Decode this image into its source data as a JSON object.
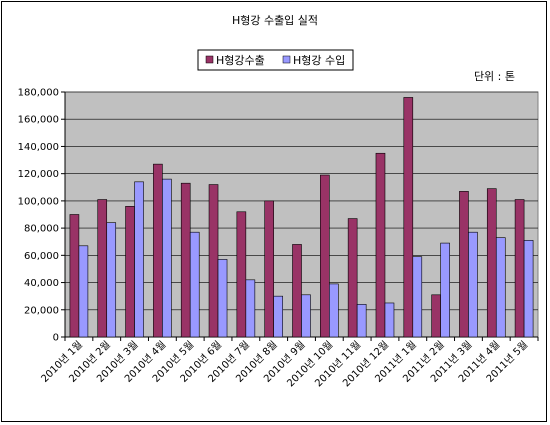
{
  "chart_data": {
    "type": "bar",
    "title": "H형강 수출입 실적",
    "unit_label": "단위 : 톤",
    "categories": [
      "2010년 1월",
      "2010년 2월",
      "2010년 3월",
      "2010년 4월",
      "2010년 5월",
      "2010년 6월",
      "2010년 7월",
      "2010년 8월",
      "2010년 9월",
      "2010년 10월",
      "2010년 11월",
      "2010년 12월",
      "2011년 1월",
      "2011년 2월",
      "2011년 3월",
      "2011년 4월",
      "2011년 5월"
    ],
    "series": [
      {
        "name": "H형강수출",
        "color": "#993366",
        "values": [
          90000,
          101000,
          96000,
          127000,
          113000,
          112000,
          92000,
          100000,
          68000,
          119000,
          87000,
          135000,
          176000,
          31000,
          107000,
          109000,
          101000
        ]
      },
      {
        "name": "H형강 수입",
        "color": "#9999ff",
        "values": [
          67000,
          84000,
          114000,
          116000,
          77000,
          57000,
          42000,
          30000,
          31000,
          39000,
          24000,
          25000,
          59000,
          69000,
          77000,
          73000,
          71000
        ]
      }
    ],
    "y_ticks": [
      "0",
      "20,000",
      "40,000",
      "60,000",
      "80,000",
      "100,000",
      "120,000",
      "140,000",
      "160,000",
      "180,000"
    ],
    "ylim": [
      0,
      180000
    ],
    "plot_background": "#c0c0c0",
    "grid": true,
    "legend_position": "top-center"
  }
}
